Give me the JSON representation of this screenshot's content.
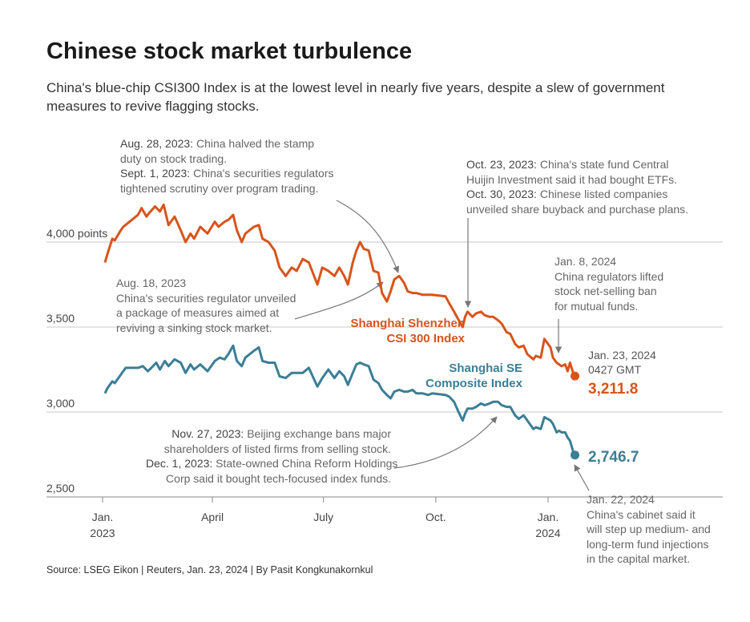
{
  "header": {
    "title": "Chinese stock market turbulence",
    "subtitle": "China's blue-chip CSI300 Index is at the lowest level in nearly five years, despite a slew of government measures to revive flagging stocks."
  },
  "annotations": {
    "aug28": {
      "date1": "Aug. 28, 2023:",
      "text1a": " China halved the stamp",
      "text1b": "duty on stock trading.",
      "date2": "Sept. 1, 2023:",
      "text2a": " China's securities regulators",
      "text2b": "tightened scrutiny over program trading."
    },
    "oct23": {
      "date1": "Oct. 23, 2023:",
      "text1a": " China's state fund Central",
      "text1b": "Huijin Investment said it had bought ETFs.",
      "date2": "Oct. 30, 2023:",
      "text2a": " Chinese listed companies",
      "text2b": "unveiled share buyback and purchase plans."
    },
    "aug18": {
      "line1": "Aug. 18, 2023",
      "line2": "China's securities regulator unveiled",
      "line3": "a package of measures aimed at",
      "line4": "reviving a sinking stock market."
    },
    "jan8": {
      "line1": "Jan. 8, 2024",
      "line2": "China regulators lifted",
      "line3": "stock net-selling ban",
      "line4": "for mutual funds."
    },
    "nov27": {
      "date1": "Nov. 27, 2023:",
      "text1a": " Beijing exchange bans major",
      "text1b": "shareholders of listed firms from selling stock.",
      "date2": "Dec. 1, 2023:",
      "text2a": " State-owned China Reform Holdings",
      "text2b": "Corp said it bought tech-focused index funds."
    },
    "jan22": {
      "line1": "Jan. 22, 2024",
      "line2": "China's cabinet said it",
      "line3": "will step up medium- and",
      "line4": "long-term fund injections",
      "line5": "in the capital market."
    },
    "jan23": {
      "line1": "Jan. 23, 2024",
      "line2": "0427 GMT"
    }
  },
  "source": "Source: LSEG Eikon | Reuters, Jan. 23, 2024 | By Pasit Kongkunakornkul",
  "colors": {
    "csi": "#d9541a",
    "sse": "#3b7e96",
    "grid": "#c8c8c8"
  },
  "chart_data": {
    "type": "line",
    "x_ticks": [
      {
        "line1": "Jan.",
        "line2": "2023",
        "date": "2023-01-01"
      },
      {
        "line1": "April",
        "line2": "",
        "date": "2023-04-01"
      },
      {
        "line1": "July",
        "line2": "",
        "date": "2023-07-01"
      },
      {
        "line1": "Oct.",
        "line2": "",
        "date": "2023-10-01"
      },
      {
        "line1": "Jan.",
        "line2": "2024",
        "date": "2024-01-01"
      }
    ],
    "y_ticks": [
      {
        "value": 4000,
        "label": "4,000 points"
      },
      {
        "value": 3500,
        "label": "3,500"
      },
      {
        "value": 3000,
        "label": "3,000"
      },
      {
        "value": 2500,
        "label": "2,500"
      }
    ],
    "xlim": [
      "2023-01-01",
      "2024-01-24"
    ],
    "ylim": [
      2450,
      4300
    ],
    "series": [
      {
        "name_line1": "Shanghai Shenzhen",
        "name_line2": "CSI 300 Index",
        "last_value": "3,211.8",
        "points": [
          [
            "2023-01-03",
            3880
          ],
          [
            "2023-01-05",
            3930
          ],
          [
            "2023-01-09",
            4020
          ],
          [
            "2023-01-11",
            4010
          ],
          [
            "2023-01-16",
            4070
          ],
          [
            "2023-01-18",
            4090
          ],
          [
            "2023-01-30",
            4160
          ],
          [
            "2023-02-02",
            4200
          ],
          [
            "2023-02-06",
            4150
          ],
          [
            "2023-02-08",
            4170
          ],
          [
            "2023-02-13",
            4210
          ],
          [
            "2023-02-17",
            4180
          ],
          [
            "2023-02-20",
            4220
          ],
          [
            "2023-02-24",
            4100
          ],
          [
            "2023-03-01",
            4150
          ],
          [
            "2023-03-06",
            4070
          ],
          [
            "2023-03-10",
            4000
          ],
          [
            "2023-03-14",
            4050
          ],
          [
            "2023-03-17",
            4020
          ],
          [
            "2023-03-22",
            4090
          ],
          [
            "2023-03-28",
            4050
          ],
          [
            "2023-04-03",
            4120
          ],
          [
            "2023-04-06",
            4090
          ],
          [
            "2023-04-11",
            4120
          ],
          [
            "2023-04-14",
            4130
          ],
          [
            "2023-04-18",
            4160
          ],
          [
            "2023-04-21",
            4070
          ],
          [
            "2023-04-25",
            4000
          ],
          [
            "2023-04-28",
            4050
          ],
          [
            "2023-05-05",
            4090
          ],
          [
            "2023-05-09",
            4100
          ],
          [
            "2023-05-12",
            4020
          ],
          [
            "2023-05-17",
            4000
          ],
          [
            "2023-05-22",
            3950
          ],
          [
            "2023-05-26",
            3850
          ],
          [
            "2023-05-31",
            3800
          ],
          [
            "2023-06-05",
            3850
          ],
          [
            "2023-06-09",
            3830
          ],
          [
            "2023-06-14",
            3900
          ],
          [
            "2023-06-19",
            3880
          ],
          [
            "2023-06-26",
            3750
          ],
          [
            "2023-06-30",
            3850
          ],
          [
            "2023-07-05",
            3830
          ],
          [
            "2023-07-10",
            3800
          ],
          [
            "2023-07-14",
            3850
          ],
          [
            "2023-07-18",
            3800
          ],
          [
            "2023-07-21",
            3750
          ],
          [
            "2023-07-25",
            3880
          ],
          [
            "2023-07-28",
            3950
          ],
          [
            "2023-07-31",
            4000
          ],
          [
            "2023-08-03",
            3960
          ],
          [
            "2023-08-07",
            3950
          ],
          [
            "2023-08-11",
            3830
          ],
          [
            "2023-08-15",
            3820
          ],
          [
            "2023-08-18",
            3700
          ],
          [
            "2023-08-22",
            3650
          ],
          [
            "2023-08-25",
            3710
          ],
          [
            "2023-08-28",
            3780
          ],
          [
            "2023-09-01",
            3800
          ],
          [
            "2023-09-05",
            3760
          ],
          [
            "2023-09-08",
            3710
          ],
          [
            "2023-09-12",
            3700
          ],
          [
            "2023-09-15",
            3700
          ],
          [
            "2023-09-20",
            3690
          ],
          [
            "2023-09-25",
            3690
          ],
          [
            "2023-09-28",
            3690
          ],
          [
            "2023-10-09",
            3680
          ],
          [
            "2023-10-12",
            3640
          ],
          [
            "2023-10-16",
            3590
          ],
          [
            "2023-10-19",
            3550
          ],
          [
            "2023-10-23",
            3500
          ],
          [
            "2023-10-25",
            3560
          ],
          [
            "2023-10-27",
            3590
          ],
          [
            "2023-10-31",
            3560
          ],
          [
            "2023-11-03",
            3580
          ],
          [
            "2023-11-07",
            3590
          ],
          [
            "2023-11-10",
            3570
          ],
          [
            "2023-11-14",
            3560
          ],
          [
            "2023-11-17",
            3560
          ],
          [
            "2023-11-21",
            3540
          ],
          [
            "2023-11-24",
            3520
          ],
          [
            "2023-11-28",
            3470
          ],
          [
            "2023-12-01",
            3460
          ],
          [
            "2023-12-05",
            3400
          ],
          [
            "2023-12-08",
            3380
          ],
          [
            "2023-12-12",
            3390
          ],
          [
            "2023-12-15",
            3340
          ],
          [
            "2023-12-20",
            3310
          ],
          [
            "2023-12-22",
            3330
          ],
          [
            "2023-12-26",
            3320
          ],
          [
            "2023-12-29",
            3430
          ],
          [
            "2024-01-03",
            3380
          ],
          [
            "2024-01-05",
            3320
          ],
          [
            "2024-01-08",
            3290
          ],
          [
            "2024-01-10",
            3280
          ],
          [
            "2024-01-12",
            3270
          ],
          [
            "2024-01-15",
            3280
          ],
          [
            "2024-01-17",
            3240
          ],
          [
            "2024-01-19",
            3290
          ],
          [
            "2024-01-22",
            3220
          ],
          [
            "2024-01-23",
            3211.8
          ]
        ]
      },
      {
        "name_line1": "Shanghai SE",
        "name_line2": "Composite Index",
        "last_value": "2,746.7",
        "points": [
          [
            "2023-01-03",
            3110
          ],
          [
            "2023-01-05",
            3140
          ],
          [
            "2023-01-09",
            3180
          ],
          [
            "2023-01-11",
            3170
          ],
          [
            "2023-01-16",
            3220
          ],
          [
            "2023-01-20",
            3260
          ],
          [
            "2023-01-30",
            3260
          ],
          [
            "2023-02-03",
            3270
          ],
          [
            "2023-02-07",
            3240
          ],
          [
            "2023-02-10",
            3260
          ],
          [
            "2023-02-14",
            3290
          ],
          [
            "2023-02-17",
            3250
          ],
          [
            "2023-02-21",
            3300
          ],
          [
            "2023-02-24",
            3270
          ],
          [
            "2023-03-01",
            3310
          ],
          [
            "2023-03-06",
            3290
          ],
          [
            "2023-03-10",
            3230
          ],
          [
            "2023-03-14",
            3280
          ],
          [
            "2023-03-17",
            3250
          ],
          [
            "2023-03-22",
            3280
          ],
          [
            "2023-03-28",
            3240
          ],
          [
            "2023-04-03",
            3300
          ],
          [
            "2023-04-07",
            3320
          ],
          [
            "2023-04-11",
            3310
          ],
          [
            "2023-04-14",
            3340
          ],
          [
            "2023-04-18",
            3390
          ],
          [
            "2023-04-21",
            3300
          ],
          [
            "2023-04-25",
            3270
          ],
          [
            "2023-04-28",
            3320
          ],
          [
            "2023-05-05",
            3360
          ],
          [
            "2023-05-09",
            3380
          ],
          [
            "2023-05-12",
            3300
          ],
          [
            "2023-05-17",
            3290
          ],
          [
            "2023-05-22",
            3290
          ],
          [
            "2023-05-26",
            3210
          ],
          [
            "2023-05-31",
            3200
          ],
          [
            "2023-06-05",
            3230
          ],
          [
            "2023-06-09",
            3230
          ],
          [
            "2023-06-14",
            3230
          ],
          [
            "2023-06-19",
            3260
          ],
          [
            "2023-06-26",
            3150
          ],
          [
            "2023-06-30",
            3200
          ],
          [
            "2023-07-05",
            3250
          ],
          [
            "2023-07-10",
            3200
          ],
          [
            "2023-07-14",
            3240
          ],
          [
            "2023-07-18",
            3210
          ],
          [
            "2023-07-21",
            3160
          ],
          [
            "2023-07-25",
            3230
          ],
          [
            "2023-07-28",
            3280
          ],
          [
            "2023-07-31",
            3290
          ],
          [
            "2023-08-03",
            3280
          ],
          [
            "2023-08-07",
            3270
          ],
          [
            "2023-08-11",
            3190
          ],
          [
            "2023-08-15",
            3170
          ],
          [
            "2023-08-18",
            3130
          ],
          [
            "2023-08-22",
            3100
          ],
          [
            "2023-08-25",
            3080
          ],
          [
            "2023-08-28",
            3120
          ],
          [
            "2023-09-01",
            3130
          ],
          [
            "2023-09-05",
            3120
          ],
          [
            "2023-09-08",
            3120
          ],
          [
            "2023-09-12",
            3130
          ],
          [
            "2023-09-15",
            3110
          ],
          [
            "2023-09-20",
            3110
          ],
          [
            "2023-09-25",
            3100
          ],
          [
            "2023-09-28",
            3110
          ],
          [
            "2023-10-09",
            3100
          ],
          [
            "2023-10-12",
            3090
          ],
          [
            "2023-10-16",
            3060
          ],
          [
            "2023-10-19",
            3010
          ],
          [
            "2023-10-23",
            2950
          ],
          [
            "2023-10-25",
            2990
          ],
          [
            "2023-10-27",
            3020
          ],
          [
            "2023-10-31",
            3020
          ],
          [
            "2023-11-03",
            3030
          ],
          [
            "2023-11-07",
            3050
          ],
          [
            "2023-11-10",
            3040
          ],
          [
            "2023-11-14",
            3050
          ],
          [
            "2023-11-17",
            3060
          ],
          [
            "2023-11-21",
            3060
          ],
          [
            "2023-11-24",
            3040
          ],
          [
            "2023-11-28",
            3030
          ],
          [
            "2023-12-01",
            3030
          ],
          [
            "2023-12-05",
            2980
          ],
          [
            "2023-12-08",
            2960
          ],
          [
            "2023-12-12",
            2980
          ],
          [
            "2023-12-15",
            2950
          ],
          [
            "2023-12-20",
            2900
          ],
          [
            "2023-12-22",
            2910
          ],
          [
            "2023-12-26",
            2900
          ],
          [
            "2023-12-29",
            2970
          ],
          [
            "2024-01-03",
            2950
          ],
          [
            "2024-01-05",
            2930
          ],
          [
            "2024-01-08",
            2880
          ],
          [
            "2024-01-10",
            2890
          ],
          [
            "2024-01-12",
            2880
          ],
          [
            "2024-01-15",
            2880
          ],
          [
            "2024-01-17",
            2850
          ],
          [
            "2024-01-19",
            2830
          ],
          [
            "2024-01-22",
            2756
          ],
          [
            "2024-01-23",
            2746.7
          ]
        ]
      }
    ]
  }
}
